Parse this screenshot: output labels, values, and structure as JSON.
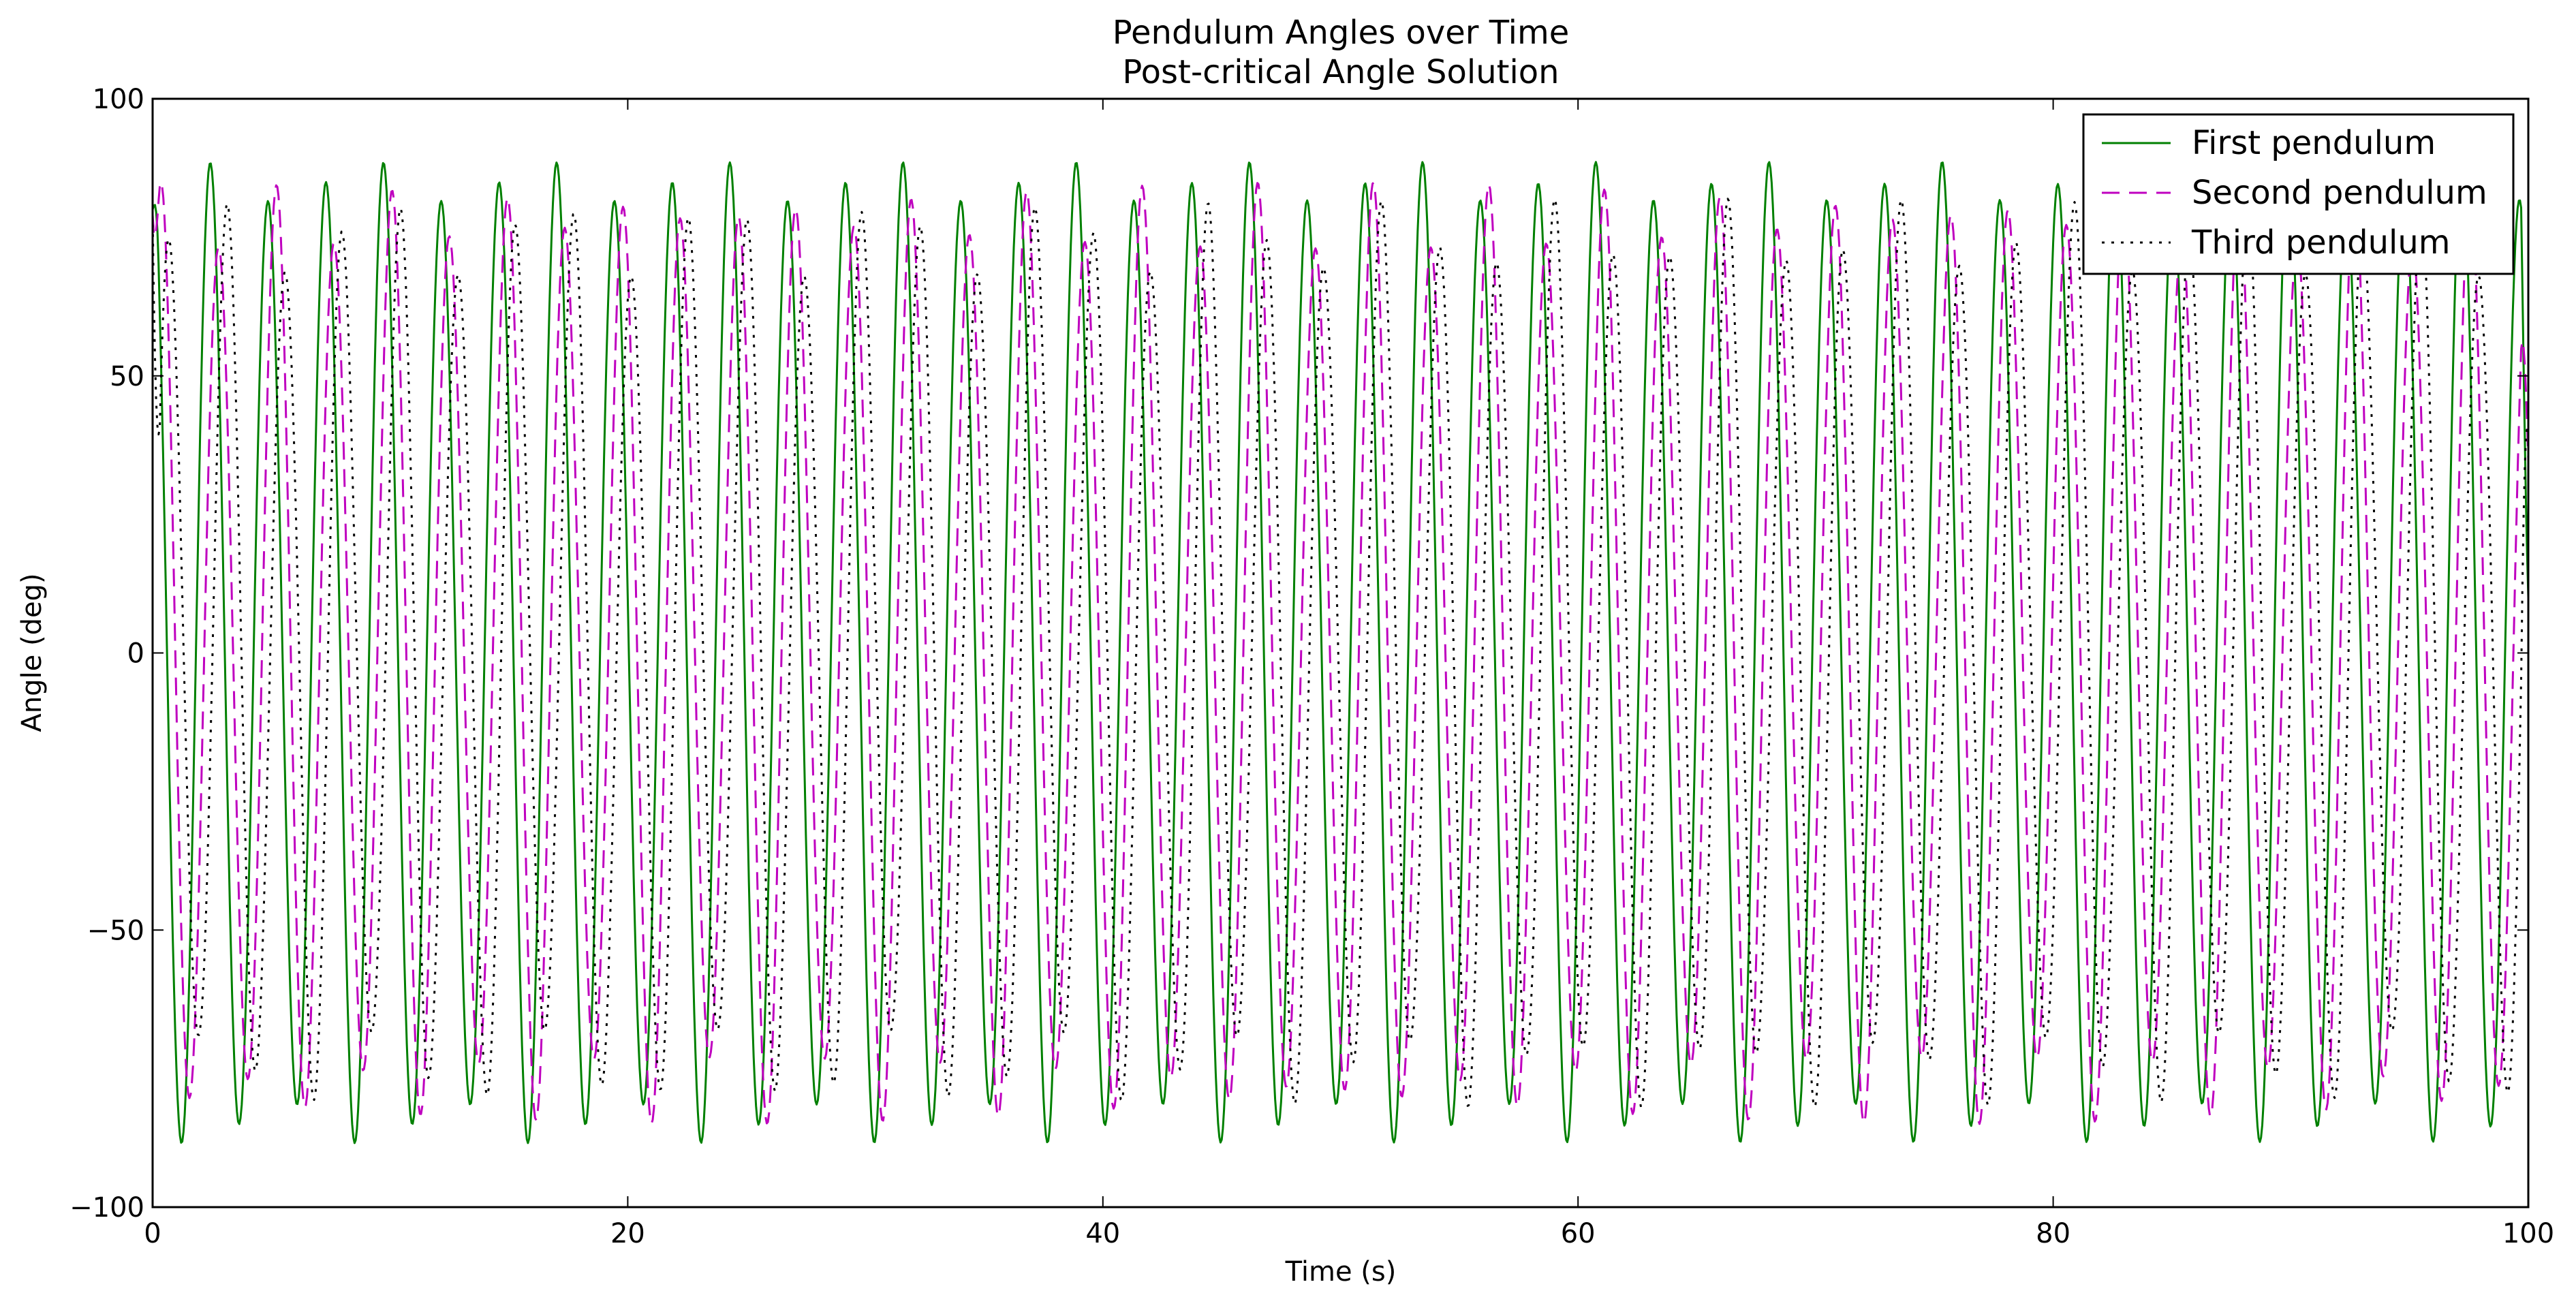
{
  "chart_data": {
    "type": "line",
    "title": "Pendulum Angles over Time",
    "subtitle": "Post-critical Angle Solution",
    "xlabel": "Time (s)",
    "ylabel": "Angle (deg)",
    "xlim": [
      0,
      100
    ],
    "ylim": [
      -100,
      100
    ],
    "xticks": [
      0,
      20,
      40,
      60,
      80,
      100
    ],
    "yticks": [
      -100,
      -50,
      0,
      50,
      100
    ],
    "xtick_labels": [
      "0",
      "20",
      "40",
      "60",
      "80",
      "100"
    ],
    "ytick_labels": [
      "−100",
      "−50",
      "0",
      "50",
      "100"
    ],
    "grid": false,
    "legend_position": "top-right",
    "sample_step": 0.05,
    "series": [
      {
        "name": "First pendulum",
        "color": "#008000",
        "style": "solid",
        "period": 2.43,
        "phase": 0,
        "amplitude_mean": 85,
        "amplitude_variation": 4,
        "envelope_period": 7.3,
        "start_value": 80,
        "end_value": 10
      },
      {
        "name": "Second pendulum",
        "color": "#bf00bf",
        "style": "dashed",
        "period": 2.43,
        "phase": 0.35,
        "amplitude_mean": 79,
        "amplitude_variation": 6,
        "envelope_period": 5.1,
        "start_value": 79,
        "end_value": 35
      },
      {
        "name": "Third pendulum",
        "color": "#000000",
        "style": "dotted",
        "period": 2.43,
        "phase": 0.7,
        "amplitude_mean": 75,
        "amplitude_variation": 7,
        "envelope_period": 3.7,
        "start_value": 79,
        "end_value": 40
      }
    ]
  }
}
